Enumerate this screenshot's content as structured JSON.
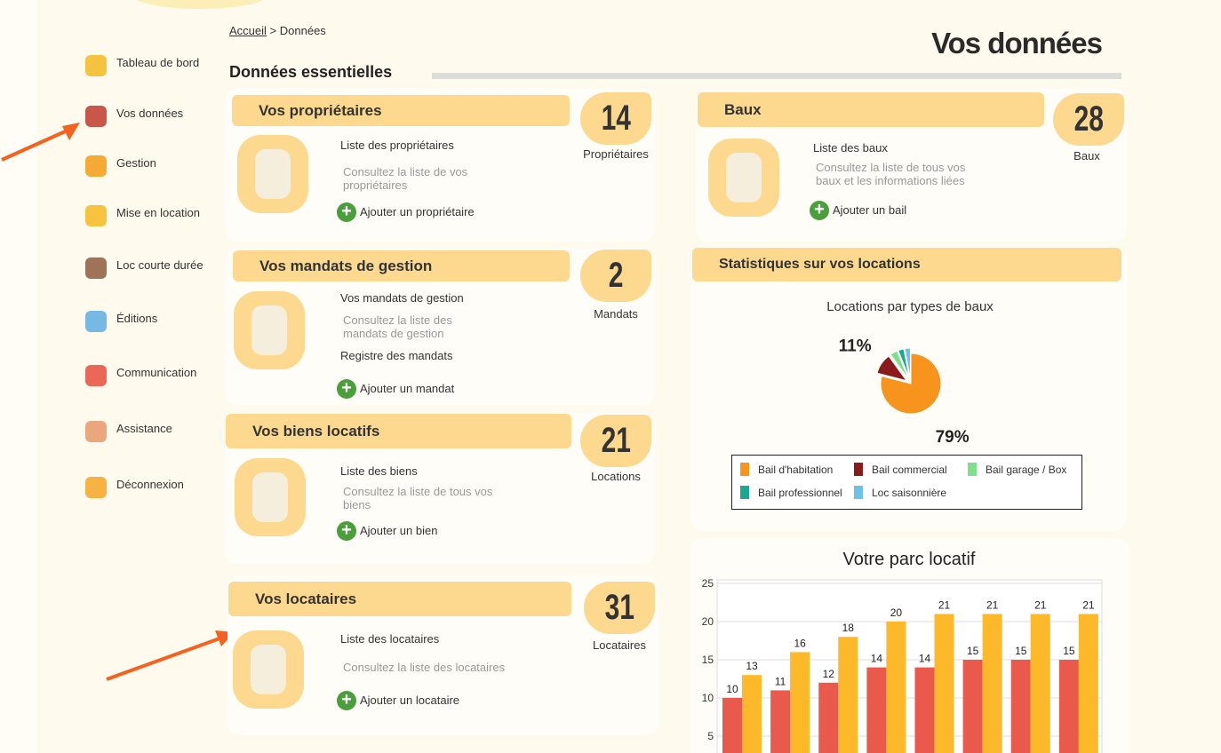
{
  "sidebar": {
    "items": [
      "Tableau de bord",
      "Vos données",
      "Gestion",
      "Mise en location",
      "Loc courte durée",
      "Éditions",
      "Communication",
      "Assistance",
      "Déconnexion"
    ]
  },
  "breadcrumb": {
    "home": "Accueil",
    "separator": ">",
    "current": "Données"
  },
  "header": {
    "title": "Vos données",
    "section": "Données essentielles"
  },
  "cards": [
    {
      "title": "Vos propriétaires",
      "count": 14,
      "count_label": "Propriétaires",
      "links": [
        {
          "text": "Liste des propriétaires",
          "description": "Consultez la liste de vos propriétaires"
        }
      ],
      "action": "Ajouter un propriétaire"
    },
    {
      "title": "Vos mandats de gestion",
      "count": 2,
      "count_label": "Mandats",
      "links": [
        {
          "text": "Vos mandats de gestion",
          "description": "Consultez la liste des mandats de gestion"
        },
        {
          "text": "Registre des mandats"
        }
      ],
      "action": "Ajouter un mandat"
    },
    {
      "title": "Vos biens locatifs",
      "count": 21,
      "count_label": "Locations",
      "links": [
        {
          "text": "Liste des biens",
          "description": "Consultez la liste de tous vos biens"
        }
      ],
      "action": "Ajouter un bien"
    },
    {
      "title": "Vos locataires",
      "count": 31,
      "count_label": "Locataires",
      "links": [
        {
          "text": "Liste des locataires",
          "description": "Consultez la liste des locataires"
        }
      ],
      "action": "Ajouter un locataire"
    },
    {
      "title": "Baux",
      "count": 28,
      "count_label": "Baux",
      "links": [
        {
          "text": "Liste des baux",
          "description": "Consultez la liste de tous vos baux et les informations liées"
        }
      ],
      "action": "Ajouter un bail"
    }
  ],
  "stats": {
    "title": "Statistiques sur vos locations"
  },
  "chart_data": [
    {
      "type": "pie",
      "title": "Locations par types de baux",
      "categories": [
        "Bail d'habitation",
        "Bail commercial",
        "Bail garage / Box",
        "Bail professionnel",
        "Loc saisonnière"
      ],
      "values": [
        79,
        11,
        4,
        3,
        3
      ],
      "value_labels": [
        "79%",
        "11%",
        null,
        null,
        null
      ],
      "colors": [
        "#f7941d",
        "#8b1a1a",
        "#7ee08a",
        "#1aa98f",
        "#6cc3e8"
      ]
    },
    {
      "type": "bar",
      "title": "Votre parc locatif",
      "categories": [
        null,
        null,
        null,
        null,
        null,
        null,
        null,
        null
      ],
      "series": [
        {
          "color": "#ea5a4c",
          "values": [
            10,
            11,
            12,
            14,
            14,
            15,
            15,
            15
          ]
        },
        {
          "color": "#fdb92a",
          "values": [
            13,
            16,
            18,
            20,
            21,
            21,
            21,
            21
          ]
        }
      ],
      "ylim": [
        0,
        25
      ],
      "yticks": [
        5,
        10,
        15,
        20,
        25
      ],
      "grid": true
    }
  ]
}
